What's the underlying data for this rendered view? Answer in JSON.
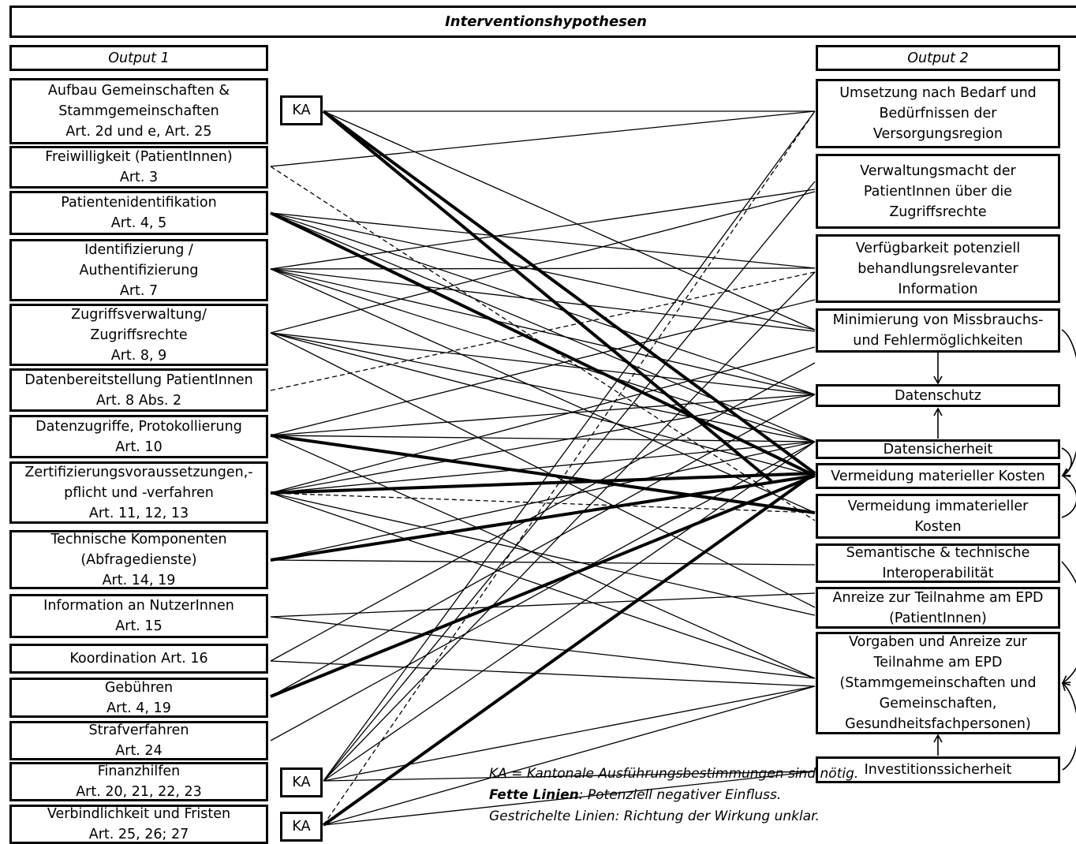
{
  "title": "Interventionshypothesen",
  "output1_header": "Output 1",
  "output2_header": "Output 2",
  "left_items": [
    "Aufbau Gemeinschaften &\nStammgemeinschaften\nArt. 2d und e, Art. 25",
    "Freiwilligkeit (PatientInnen)\nArt. 3",
    "Patientenidentifikation\nArt. 4, 5",
    "Identifizierung /\nAuthentifizierung\nArt. 7",
    "Zugriffsverwaltung/\nZugriffsrechte\nArt. 8, 9",
    "Datenbereitstellung PatientInnen\nArt. 8 Abs. 2",
    "Datenzugriffe, Protokollierung\nArt. 10",
    "Zertifizierungsvoraussetzungen,-\npflicht und -verfahren\nArt. 11, 12, 13",
    "Technische Komponenten\n(Abfragedienste)\nArt. 14, 19",
    "Information an NutzerInnen\nArt. 15",
    "Koordination Art. 16",
    "Gebühren\nArt. 4, 19",
    "Strafverfahren\nArt. 24",
    "Finanzhilfen\nArt. 20, 21, 22, 23",
    "Verbindlichkeit und Fristen\nArt. 25, 26; 27"
  ],
  "ka_label": "KA",
  "right_items": [
    "Umsetzung nach Bedarf und\nBedürfnissen der\nVersorgungsregion",
    "Verwaltungsmacht der\nPatientInnen über die\nZugriffsrechte",
    "Verfügbarkeit potenziell\nbehandlungsrelevanter\nInformation",
    "Minimierung von Missbrauchs-\nund Fehlermöglichkeiten",
    "Datenschutz",
    "Datensicherheit",
    "Vermeidung materieller Kosten",
    "Vermeidung immaterieller\nKosten",
    "Semantische & technische\nInteroperabilität",
    "Anreize zur Teilnahme am EPD\n(PatientInnen)",
    "Vorgaben und Anreize zur\nTeilnahme am EPD\n(Stammgemeinschaften und\nGemeinschaften,\nGesundheitsfachpersonen)",
    "Investitionssicherheit"
  ],
  "legend": {
    "line1": "KA = Kantonale Ausführungsbestimmungen sind nötig.",
    "line2_bold": "Fette Linien",
    "line2_rest": ": Potenziell negativer Einfluss.",
    "line3": "Gestrichelte Linien: Richtung der Wirkung unklar."
  }
}
